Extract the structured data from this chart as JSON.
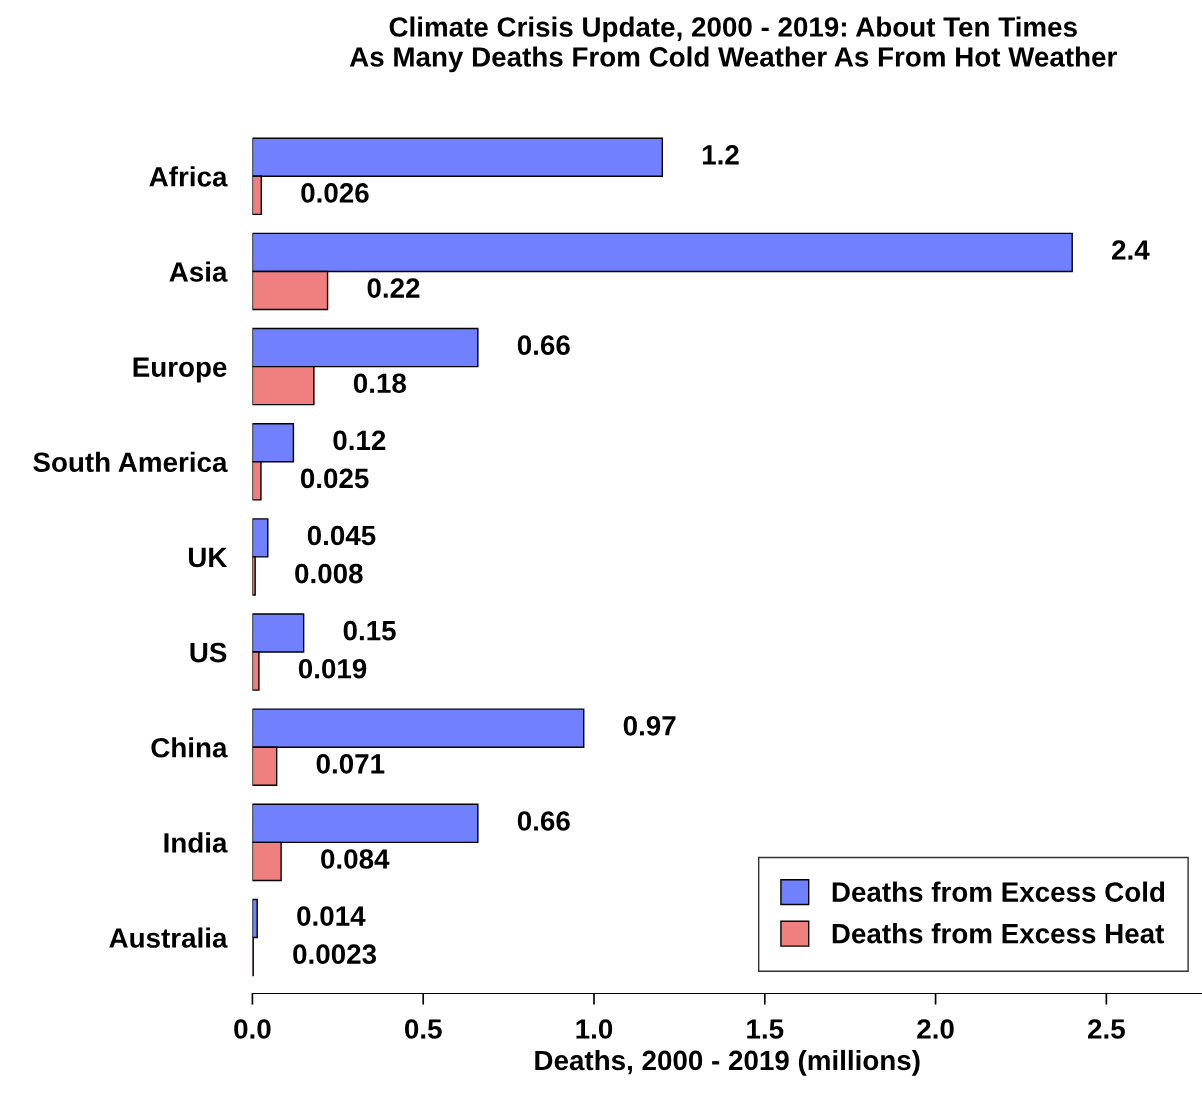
{
  "chart_data": {
    "type": "bar",
    "orientation": "horizontal",
    "title": "Climate Crisis Update, 2000 - 2019: About Ten Times\nAs Many Deaths From Cold Weather As From Hot Weather",
    "xlabel": "Deaths, 2000 - 2019 (millions)",
    "categories": [
      "Africa",
      "Asia",
      "Europe",
      "South America",
      "UK",
      "US",
      "China",
      "India",
      "Australia"
    ],
    "series": [
      {
        "name": "Deaths from Excess Cold",
        "color": "#7080ff",
        "values": [
          1.2,
          2.4,
          0.66,
          0.12,
          0.045,
          0.15,
          0.97,
          0.66,
          0.014
        ]
      },
      {
        "name": "Deaths from Excess Heat",
        "color": "#f08080",
        "values": [
          0.026,
          0.22,
          0.18,
          0.025,
          0.008,
          0.019,
          0.071,
          0.084,
          0.0023
        ]
      }
    ],
    "xlim": [
      0,
      2.78
    ],
    "xticks": [
      {
        "value": 0,
        "label": "0.0"
      },
      0.5,
      {
        "value": 1,
        "label": "1.0"
      },
      1.5,
      {
        "value": 2,
        "label": "2.0"
      },
      2.5
    ],
    "data_labels": true,
    "legend": "bottom right",
    "grid": false
  }
}
